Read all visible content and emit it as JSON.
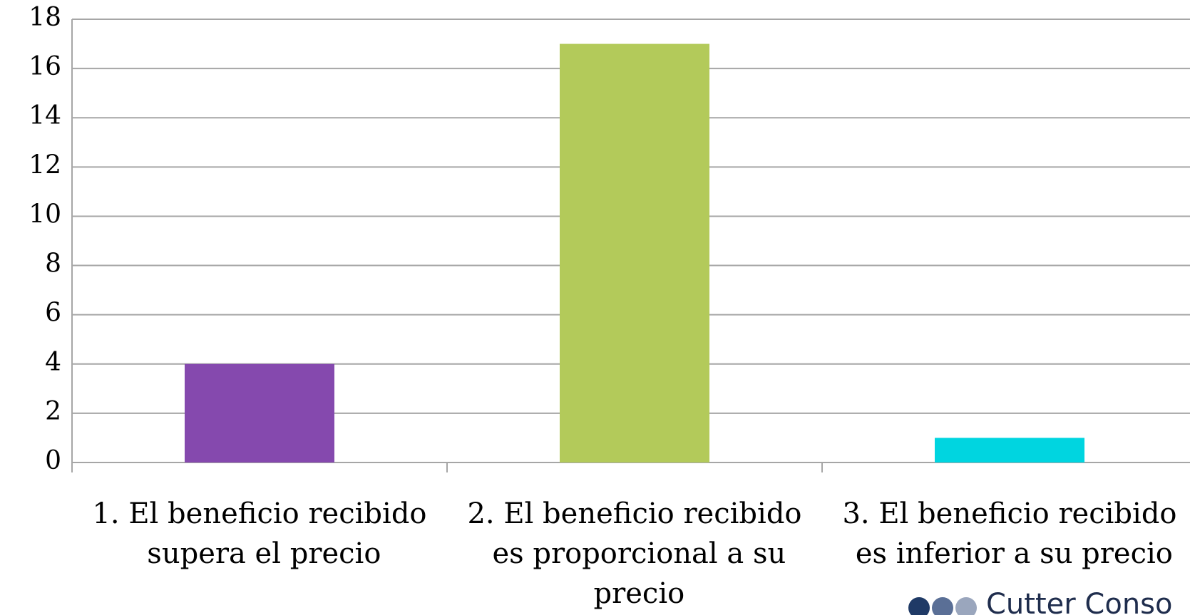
{
  "chart_data": {
    "type": "bar",
    "categories": [
      "1. El beneficio recibido supera el precio",
      "2. El beneficio recibido es proporcional a su precio",
      "3. El beneficio recibido es inferior a su precio"
    ],
    "values": [
      4,
      17,
      1
    ],
    "colors": [
      "#8549ae",
      "#b3ca5a",
      "#00d5e0"
    ],
    "ylim": [
      0,
      18
    ],
    "yticks": [
      0,
      2,
      4,
      6,
      8,
      10,
      12,
      14,
      16,
      18
    ],
    "grid": true,
    "logo": "Cutter Conso"
  }
}
